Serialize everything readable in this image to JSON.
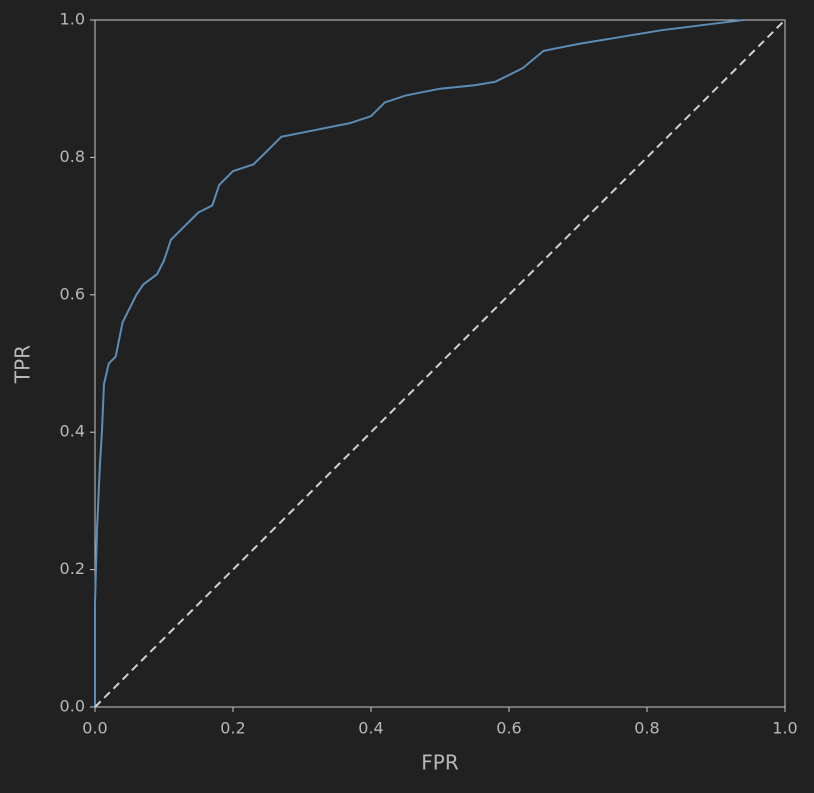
{
  "chart_data": {
    "type": "line",
    "xlabel": "FPR",
    "ylabel": "TPR",
    "xlim": [
      0,
      1
    ],
    "ylim": [
      0,
      1
    ],
    "xticks": [
      {
        "value": 0,
        "label": "0.0"
      },
      0.2,
      0.4,
      0.6,
      0.8,
      {
        "value": 1,
        "label": "1.0"
      }
    ],
    "yticks": [
      {
        "value": 0,
        "label": "0.0"
      },
      0.2,
      0.4,
      0.6,
      0.8,
      {
        "value": 1,
        "label": "1.0"
      }
    ],
    "grid": false,
    "series": [
      {
        "color": "#5b8db8",
        "dash": false,
        "x": [
          0,
          0,
          0.003,
          0.007,
          0.01,
          0.013,
          0.02,
          0.03,
          0.04,
          0.05,
          0.06,
          0.07,
          0.09,
          0.1,
          0.11,
          0.13,
          0.15,
          0.17,
          0.18,
          0.2,
          0.23,
          0.25,
          0.27,
          0.32,
          0.37,
          0.4,
          0.42,
          0.45,
          0.5,
          0.55,
          0.58,
          0.62,
          0.65,
          0.7,
          0.76,
          0.82,
          0.9,
          0.94
        ],
        "values": [
          0,
          0.15,
          0.26,
          0.35,
          0.4,
          0.47,
          0.5,
          0.51,
          0.56,
          0.58,
          0.6,
          0.615,
          0.63,
          0.65,
          0.68,
          0.7,
          0.72,
          0.73,
          0.76,
          0.78,
          0.79,
          0.81,
          0.83,
          0.84,
          0.85,
          0.86,
          0.88,
          0.89,
          0.9,
          0.905,
          0.91,
          0.93,
          0.955,
          0.965,
          0.975,
          0.985,
          0.995,
          1
        ]
      },
      {
        "color": "#d0d0d0",
        "dash": true,
        "x": [
          0,
          1
        ],
        "values": [
          0,
          1
        ]
      }
    ]
  }
}
